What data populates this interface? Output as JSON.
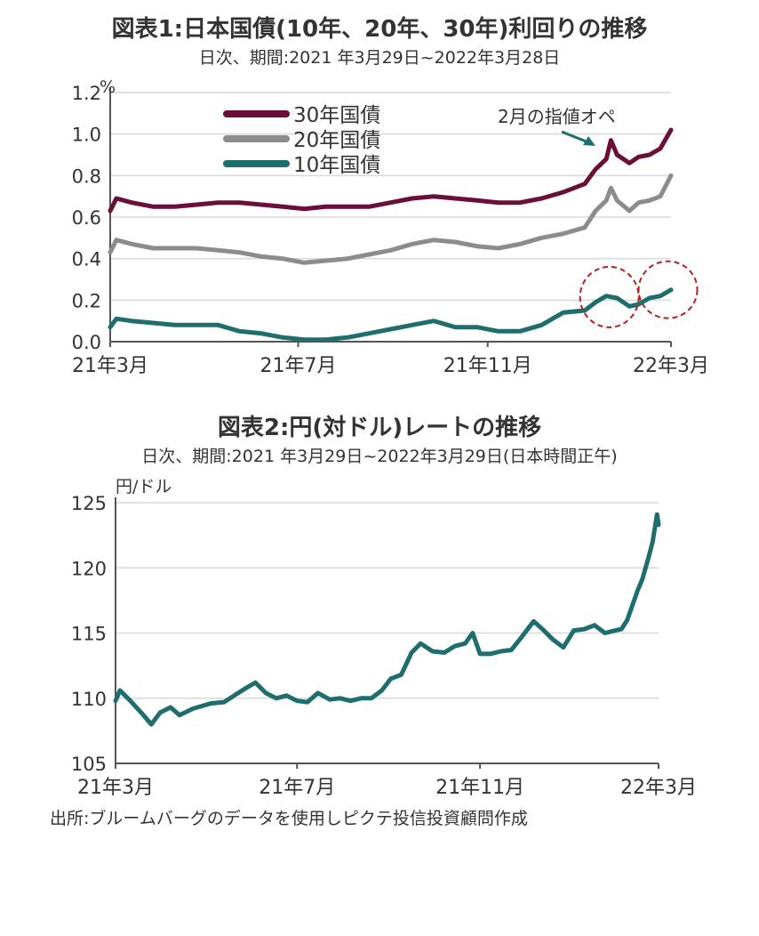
{
  "source": "出所:ブルームバーグのデータを使用しピクテ投信投資顧問作成",
  "colors": {
    "jgb30": "#6b0f3a",
    "jgb20": "#8c8c8c",
    "jgb10": "#1f6e6e",
    "usdjpy": "#1f6e6e",
    "circle": "#b22222",
    "grid": "#d9d9d9",
    "axis": "#555555"
  },
  "chart_data": [
    {
      "type": "line",
      "title": "図表1:日本国債(10年、20年、30年)利回りの推移",
      "subtitle": "日次、期間:2021 年3月29日~2022年3月28日",
      "ylabel": "%",
      "ylim": [
        0,
        1.2
      ],
      "yticks": [
        "0.0",
        "0.2",
        "0.4",
        "0.6",
        "0.8",
        "1.0",
        "1.2"
      ],
      "xticks": [
        "21年3月",
        "21年7月",
        "21年11月",
        "22年3月"
      ],
      "xtick_dates": [
        "2021-03-29",
        "2021-07-29",
        "2021-11-29",
        "2022-03-28"
      ],
      "xlim": [
        "2021-03-29",
        "2022-03-28"
      ],
      "grid": true,
      "legend": "top-left",
      "annotation": "2月の指値オペ",
      "series": [
        {
          "name": "30年国債",
          "color_key": "jgb30",
          "points": [
            [
              "2021-03-29",
              0.63
            ],
            [
              "2021-04-02",
              0.69
            ],
            [
              "2021-04-12",
              0.67
            ],
            [
              "2021-04-26",
              0.65
            ],
            [
              "2021-05-10",
              0.65
            ],
            [
              "2021-05-24",
              0.66
            ],
            [
              "2021-06-07",
              0.67
            ],
            [
              "2021-06-21",
              0.67
            ],
            [
              "2021-07-05",
              0.66
            ],
            [
              "2021-07-19",
              0.65
            ],
            [
              "2021-08-02",
              0.64
            ],
            [
              "2021-08-16",
              0.65
            ],
            [
              "2021-08-30",
              0.65
            ],
            [
              "2021-09-13",
              0.65
            ],
            [
              "2021-09-27",
              0.67
            ],
            [
              "2021-10-11",
              0.69
            ],
            [
              "2021-10-25",
              0.7
            ],
            [
              "2021-11-08",
              0.69
            ],
            [
              "2021-11-22",
              0.68
            ],
            [
              "2021-12-06",
              0.67
            ],
            [
              "2021-12-20",
              0.67
            ],
            [
              "2022-01-03",
              0.69
            ],
            [
              "2022-01-17",
              0.72
            ],
            [
              "2022-01-31",
              0.76
            ],
            [
              "2022-02-07",
              0.83
            ],
            [
              "2022-02-14",
              0.88
            ],
            [
              "2022-02-17",
              0.97
            ],
            [
              "2022-02-21",
              0.9
            ],
            [
              "2022-03-01",
              0.86
            ],
            [
              "2022-03-07",
              0.89
            ],
            [
              "2022-03-14",
              0.9
            ],
            [
              "2022-03-21",
              0.93
            ],
            [
              "2022-03-28",
              1.02
            ]
          ]
        },
        {
          "name": "20年国債",
          "color_key": "jgb20",
          "points": [
            [
              "2021-03-29",
              0.43
            ],
            [
              "2021-04-02",
              0.49
            ],
            [
              "2021-04-12",
              0.47
            ],
            [
              "2021-04-26",
              0.45
            ],
            [
              "2021-05-10",
              0.45
            ],
            [
              "2021-05-24",
              0.45
            ],
            [
              "2021-06-07",
              0.44
            ],
            [
              "2021-06-21",
              0.43
            ],
            [
              "2021-07-05",
              0.41
            ],
            [
              "2021-07-19",
              0.4
            ],
            [
              "2021-08-02",
              0.38
            ],
            [
              "2021-08-16",
              0.39
            ],
            [
              "2021-08-30",
              0.4
            ],
            [
              "2021-09-13",
              0.42
            ],
            [
              "2021-09-27",
              0.44
            ],
            [
              "2021-10-11",
              0.47
            ],
            [
              "2021-10-25",
              0.49
            ],
            [
              "2021-11-08",
              0.48
            ],
            [
              "2021-11-22",
              0.46
            ],
            [
              "2021-12-06",
              0.45
            ],
            [
              "2021-12-20",
              0.47
            ],
            [
              "2022-01-03",
              0.5
            ],
            [
              "2022-01-17",
              0.52
            ],
            [
              "2022-01-31",
              0.55
            ],
            [
              "2022-02-07",
              0.63
            ],
            [
              "2022-02-14",
              0.68
            ],
            [
              "2022-02-17",
              0.74
            ],
            [
              "2022-02-21",
              0.68
            ],
            [
              "2022-03-01",
              0.63
            ],
            [
              "2022-03-07",
              0.67
            ],
            [
              "2022-03-14",
              0.68
            ],
            [
              "2022-03-21",
              0.7
            ],
            [
              "2022-03-28",
              0.8
            ]
          ]
        },
        {
          "name": "10年国債",
          "color_key": "jgb10",
          "points": [
            [
              "2021-03-29",
              0.07
            ],
            [
              "2021-04-02",
              0.11
            ],
            [
              "2021-04-12",
              0.1
            ],
            [
              "2021-04-26",
              0.09
            ],
            [
              "2021-05-10",
              0.08
            ],
            [
              "2021-05-24",
              0.08
            ],
            [
              "2021-06-07",
              0.08
            ],
            [
              "2021-06-21",
              0.05
            ],
            [
              "2021-07-05",
              0.04
            ],
            [
              "2021-07-19",
              0.02
            ],
            [
              "2021-08-02",
              0.01
            ],
            [
              "2021-08-16",
              0.01
            ],
            [
              "2021-08-30",
              0.02
            ],
            [
              "2021-09-13",
              0.04
            ],
            [
              "2021-09-27",
              0.06
            ],
            [
              "2021-10-11",
              0.08
            ],
            [
              "2021-10-25",
              0.1
            ],
            [
              "2021-11-08",
              0.07
            ],
            [
              "2021-11-22",
              0.07
            ],
            [
              "2021-12-06",
              0.05
            ],
            [
              "2021-12-20",
              0.05
            ],
            [
              "2022-01-03",
              0.08
            ],
            [
              "2022-01-17",
              0.14
            ],
            [
              "2022-01-31",
              0.15
            ],
            [
              "2022-02-07",
              0.19
            ],
            [
              "2022-02-14",
              0.22
            ],
            [
              "2022-02-21",
              0.21
            ],
            [
              "2022-03-01",
              0.17
            ],
            [
              "2022-03-07",
              0.18
            ],
            [
              "2022-03-14",
              0.21
            ],
            [
              "2022-03-21",
              0.22
            ],
            [
              "2022-03-28",
              0.25
            ]
          ]
        }
      ]
    },
    {
      "type": "line",
      "title": "図表2:円(対ドル)レートの推移",
      "subtitle": "日次、期間:2021 年3月29日~2022年3月29日(日本時間正午)",
      "ylabel": "円/ドル",
      "ylim": [
        105,
        125
      ],
      "yticks": [
        "105",
        "110",
        "115",
        "120",
        "125"
      ],
      "xticks": [
        "21年3月",
        "21年7月",
        "21年11月",
        "22年3月"
      ],
      "xtick_dates": [
        "2021-03-29",
        "2021-07-29",
        "2021-11-29",
        "2022-03-29"
      ],
      "xlim": [
        "2021-03-29",
        "2022-03-29"
      ],
      "grid": true,
      "series": [
        {
          "name": "",
          "color_key": "usdjpy",
          "points": [
            [
              "2021-03-29",
              109.8
            ],
            [
              "2021-04-01",
              110.6
            ],
            [
              "2021-04-08",
              109.8
            ],
            [
              "2021-04-16",
              108.8
            ],
            [
              "2021-04-22",
              108.0
            ],
            [
              "2021-04-28",
              108.9
            ],
            [
              "2021-05-05",
              109.3
            ],
            [
              "2021-05-11",
              108.7
            ],
            [
              "2021-05-20",
              109.2
            ],
            [
              "2021-06-01",
              109.6
            ],
            [
              "2021-06-10",
              109.7
            ],
            [
              "2021-06-18",
              110.3
            ],
            [
              "2021-06-25",
              110.8
            ],
            [
              "2021-07-01",
              111.2
            ],
            [
              "2021-07-08",
              110.4
            ],
            [
              "2021-07-15",
              110.0
            ],
            [
              "2021-07-22",
              110.2
            ],
            [
              "2021-07-29",
              109.8
            ],
            [
              "2021-08-05",
              109.7
            ],
            [
              "2021-08-12",
              110.4
            ],
            [
              "2021-08-20",
              109.9
            ],
            [
              "2021-08-27",
              110.0
            ],
            [
              "2021-09-03",
              109.8
            ],
            [
              "2021-09-10",
              110.0
            ],
            [
              "2021-09-17",
              110.0
            ],
            [
              "2021-09-24",
              110.6
            ],
            [
              "2021-09-30",
              111.5
            ],
            [
              "2021-10-07",
              111.8
            ],
            [
              "2021-10-14",
              113.5
            ],
            [
              "2021-10-20",
              114.2
            ],
            [
              "2021-10-28",
              113.6
            ],
            [
              "2021-11-05",
              113.5
            ],
            [
              "2021-11-12",
              114.0
            ],
            [
              "2021-11-19",
              114.2
            ],
            [
              "2021-11-24",
              115.0
            ],
            [
              "2021-11-29",
              113.4
            ],
            [
              "2021-12-06",
              113.4
            ],
            [
              "2021-12-13",
              113.6
            ],
            [
              "2021-12-20",
              113.7
            ],
            [
              "2021-12-27",
              114.7
            ],
            [
              "2022-01-04",
              115.9
            ],
            [
              "2022-01-10",
              115.3
            ],
            [
              "2022-01-17",
              114.5
            ],
            [
              "2022-01-24",
              113.9
            ],
            [
              "2022-01-31",
              115.2
            ],
            [
              "2022-02-07",
              115.3
            ],
            [
              "2022-02-14",
              115.6
            ],
            [
              "2022-02-21",
              115.0
            ],
            [
              "2022-02-28",
              115.2
            ],
            [
              "2022-03-04",
              115.3
            ],
            [
              "2022-03-08",
              116.0
            ],
            [
              "2022-03-11",
              117.0
            ],
            [
              "2022-03-15",
              118.3
            ],
            [
              "2022-03-18",
              119.1
            ],
            [
              "2022-03-22",
              120.7
            ],
            [
              "2022-03-25",
              122.0
            ],
            [
              "2022-03-28",
              124.1
            ],
            [
              "2022-03-29",
              123.3
            ]
          ]
        }
      ]
    }
  ]
}
